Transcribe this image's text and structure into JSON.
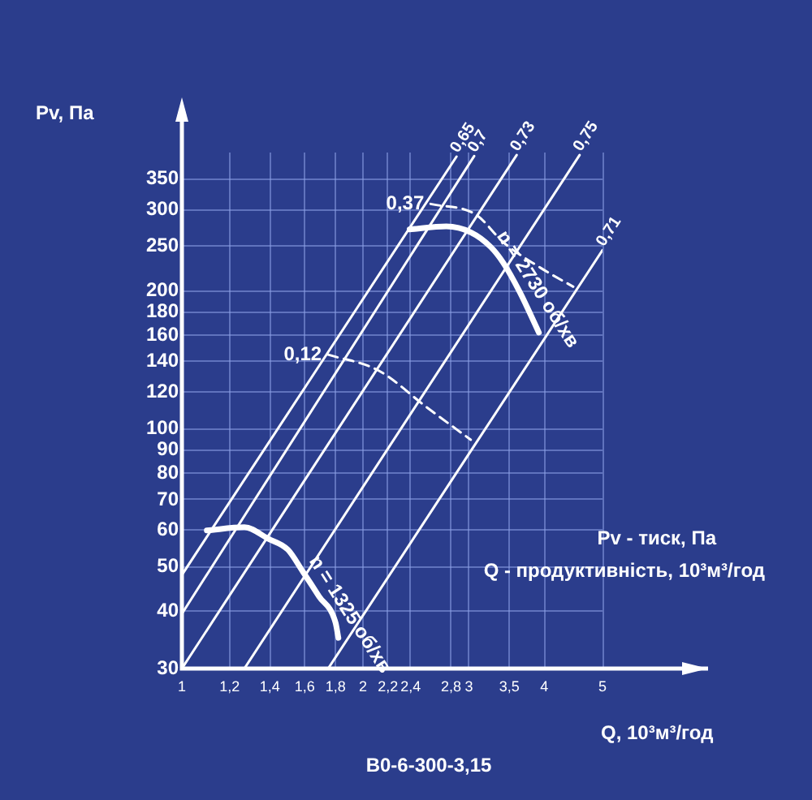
{
  "chart_data": {
    "type": "line",
    "title": "B0-6-300-3,15",
    "xlabel": "Q, 10³м³/год",
    "ylabel": "Pv, Па",
    "annotations": [
      "Pv - тиск, Па",
      "Q - продуктивність, 10³м³/год"
    ],
    "log": "xy",
    "grid": true,
    "legend": false,
    "marker": "none",
    "xlim": [
      1,
      5
    ],
    "ylim": [
      30,
      400
    ],
    "xticks": [
      1,
      {
        "value": 1.2,
        "label": "1,2"
      },
      {
        "value": 1.4,
        "label": "1,4"
      },
      {
        "value": 1.6,
        "label": "1,6"
      },
      {
        "value": 1.8,
        "label": "1,8"
      },
      2,
      {
        "value": 2.2,
        "label": "2,2"
      },
      {
        "value": 2.4,
        "label": "2,4"
      },
      {
        "value": 2.8,
        "label": "2,8"
      },
      3,
      {
        "value": 3.5,
        "label": "3,5"
      },
      4,
      5
    ],
    "yticks": [
      30,
      40,
      50,
      60,
      70,
      80,
      90,
      100,
      120,
      140,
      160,
      180,
      200,
      250,
      300,
      350
    ],
    "series": [
      {
        "name": "n = 2730 об/хв",
        "color": "#ffffff",
        "line_style": "solid",
        "x": [
          2.39,
          2.75,
          3.02,
          3.26,
          3.42,
          3.64,
          3.92
        ],
        "values": [
          272,
          276,
          268,
          249,
          230,
          199,
          162
        ]
      },
      {
        "name": "n = 1325 об/хв",
        "color": "#ffffff",
        "line_style": "solid",
        "x": [
          1.1,
          1.27,
          1.39,
          1.5,
          1.59,
          1.69,
          1.8,
          1.82
        ],
        "values": [
          60,
          61,
          57.6,
          54.5,
          48.7,
          43.1,
          37.8,
          35
        ]
      },
      {
        "name": "0,65",
        "color": "#ffffff",
        "line_style": "solid",
        "x": [
          1,
          2.86
        ],
        "values": [
          48,
          392
        ]
      },
      {
        "name": "0,7",
        "color": "#ffffff",
        "line_style": "solid",
        "x": [
          1,
          3.06
        ],
        "values": [
          39.5,
          393
        ]
      },
      {
        "name": "0,73",
        "color": "#ffffff",
        "line_style": "solid",
        "x": [
          1,
          3.6
        ],
        "values": [
          30,
          395
        ]
      },
      {
        "name": "0,75",
        "color": "#ffffff",
        "line_style": "solid",
        "x": [
          1.27,
          4.58
        ],
        "values": [
          30,
          395
        ]
      },
      {
        "name": "0,71",
        "color": "#ffffff",
        "line_style": "solid",
        "x": [
          1.75,
          5
        ],
        "values": [
          30,
          245
        ]
      },
      {
        "name": "0,37",
        "color": "#ffffff",
        "line_style": "dashed",
        "x": [
          2.59,
          3.08,
          3.42,
          3.95,
          4.47
        ],
        "values": [
          309,
          293,
          255,
          224,
          204
        ]
      },
      {
        "name": "0,12",
        "color": "#ffffff",
        "line_style": "dashed",
        "x": [
          1.75,
          2.12,
          2.56,
          3.02
        ],
        "values": [
          145,
          134,
          111,
          94.6
        ]
      }
    ]
  }
}
